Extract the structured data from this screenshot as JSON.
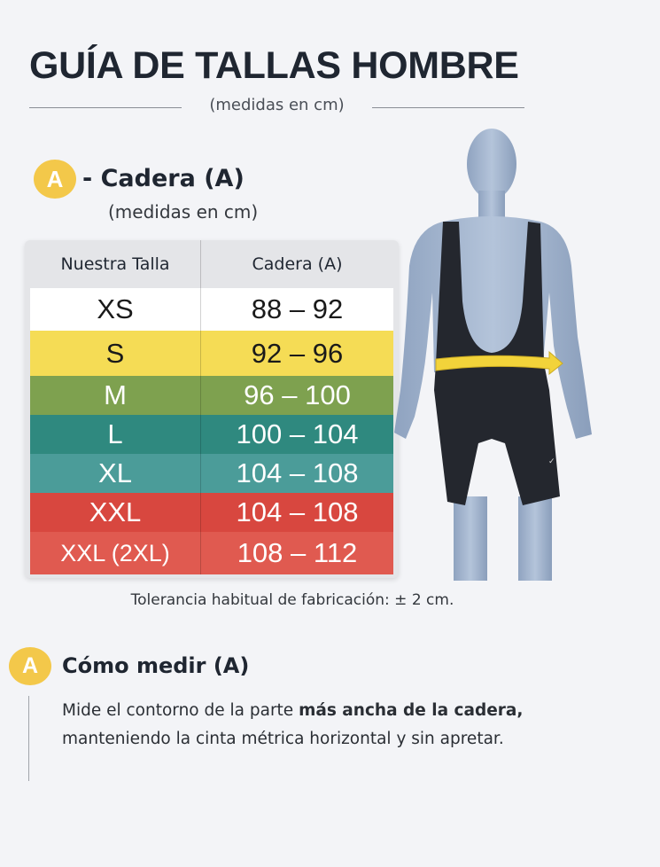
{
  "header": {
    "title": "GUÍA DE TALLAS HOMBRE",
    "subtitle": "(medidas en cm)"
  },
  "section_a": {
    "badge": "A",
    "title": "- Cadera (A)",
    "units": "(medidas en cm)"
  },
  "table": {
    "headers": [
      "Nuestra Talla",
      "Cadera (A)"
    ],
    "rows": [
      {
        "size": "XS",
        "range": "88 – 92",
        "color": "#ffffff",
        "text": "#1a1a1a"
      },
      {
        "size": "S",
        "range": "92 – 96",
        "color": "#f5dc55",
        "text": "#1a1a1a"
      },
      {
        "size": "M",
        "range": "96 – 100",
        "color": "#7ea14f",
        "text": "#ffffff"
      },
      {
        "size": "L",
        "range": "100 – 104",
        "color": "#2f897f",
        "text": "#ffffff"
      },
      {
        "size": "XL",
        "range": "104 – 108",
        "color": "#4b9c99",
        "text": "#ffffff"
      },
      {
        "size": "XXL",
        "range": "104 – 108",
        "color": "#d8473f",
        "text": "#ffffff"
      },
      {
        "size": "XXL (2XL)",
        "range": "108 – 112",
        "color": "#e05a50",
        "text": "#ffffff"
      }
    ]
  },
  "tolerance": "Tolerancia habitual de fabricación: ± 2 cm.",
  "how_to": {
    "badge": "A",
    "title": "Cómo medir (A)",
    "line1_start": "Mide el contorno de la parte ",
    "line1_bold": "más ancha de la cadera,",
    "line2": "manteniendo la cinta métrica horizontal y sin apretar."
  },
  "figure": {
    "subject": "mannequin wearing black cycling bib shorts with yellow measuring tape at hips",
    "tape_color": "#f2d33a",
    "body_color": "#9fb2cc",
    "garment_color": "#23262d"
  },
  "colors": {
    "accent": "#f3c84a"
  }
}
